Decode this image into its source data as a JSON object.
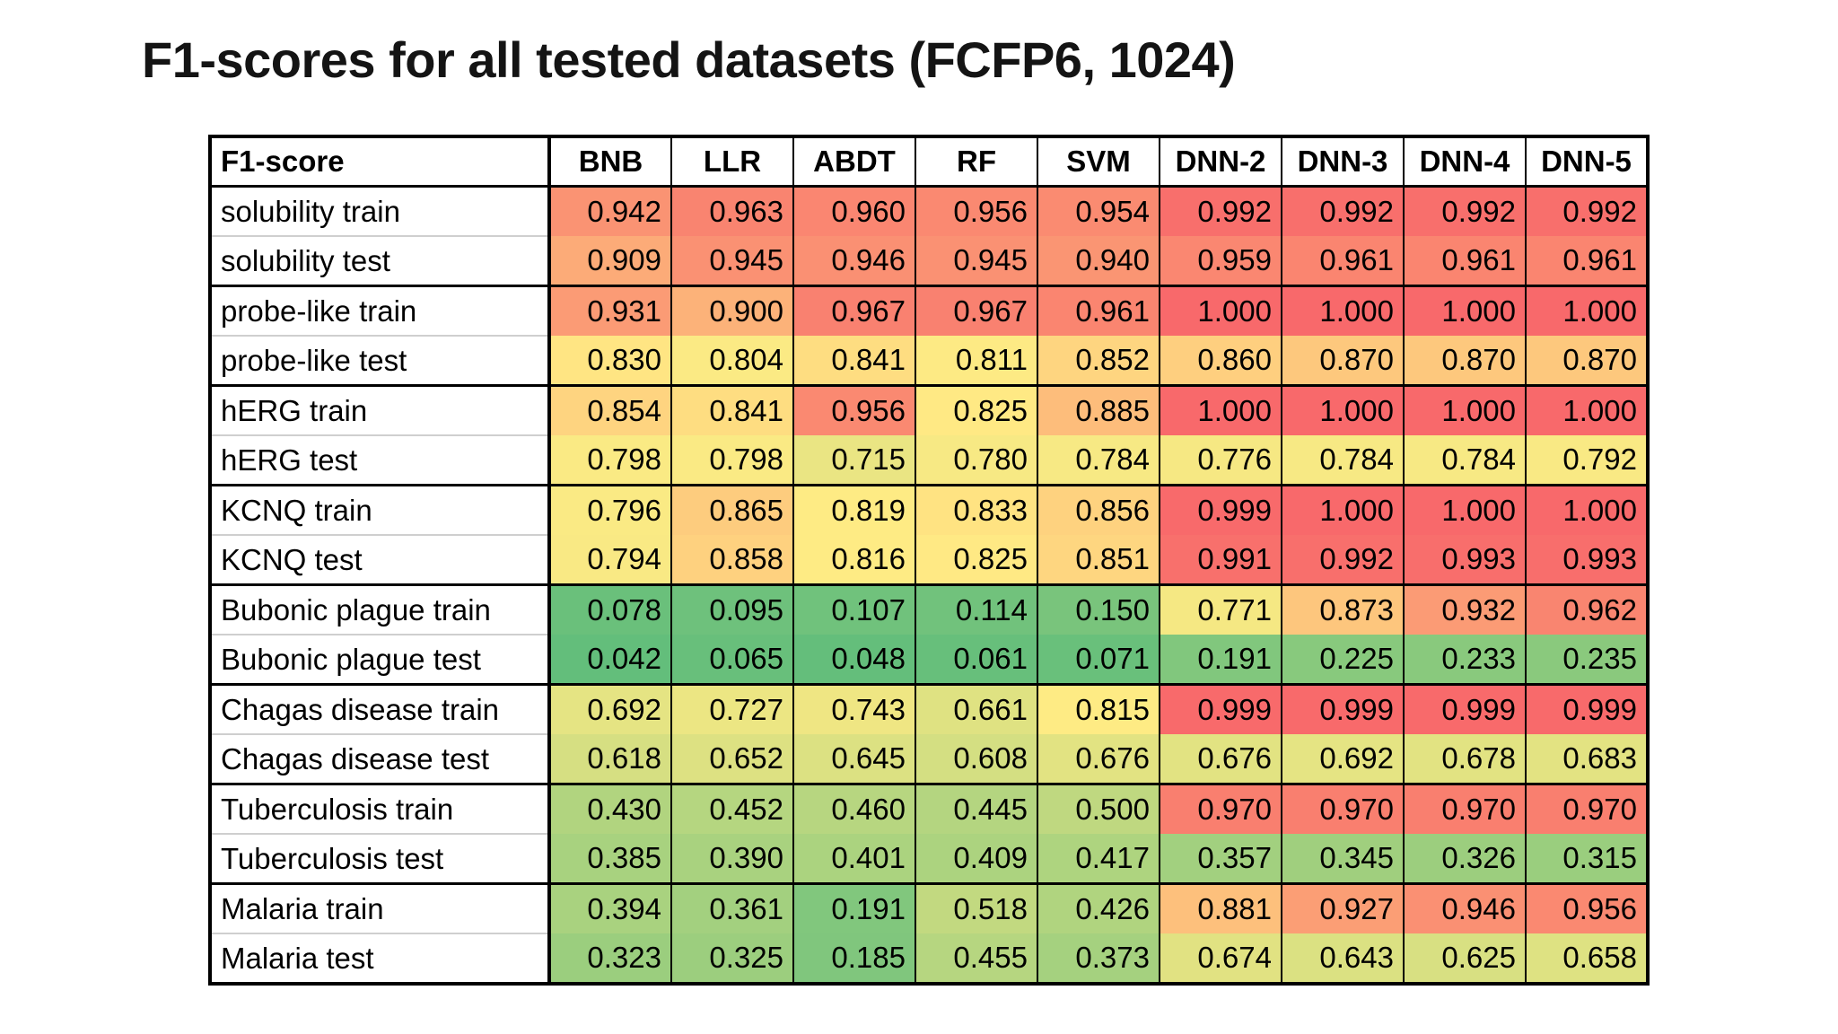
{
  "title": "F1-scores for all tested datasets (FCFP6, 1024)",
  "chart_data": {
    "type": "table",
    "subtype": "heatmap",
    "corner_label": "F1-score",
    "columns": [
      "BNB",
      "LLR",
      "ABDT",
      "RF",
      "SVM",
      "DNN-2",
      "DNN-3",
      "DNN-4",
      "DNN-5"
    ],
    "rows": [
      {
        "label": "solubility train",
        "values": [
          "0.942",
          "0.963",
          "0.960",
          "0.956",
          "0.954",
          "0.992",
          "0.992",
          "0.992",
          "0.992"
        ]
      },
      {
        "label": "solubility test",
        "values": [
          "0.909",
          "0.945",
          "0.946",
          "0.945",
          "0.940",
          "0.959",
          "0.961",
          "0.961",
          "0.961"
        ]
      },
      {
        "label": "probe-like train",
        "values": [
          "0.931",
          "0.900",
          "0.967",
          "0.967",
          "0.961",
          "1.000",
          "1.000",
          "1.000",
          "1.000"
        ]
      },
      {
        "label": "probe-like test",
        "values": [
          "0.830",
          "0.804",
          "0.841",
          "0.811",
          "0.852",
          "0.860",
          "0.870",
          "0.870",
          "0.870"
        ]
      },
      {
        "label": "hERG train",
        "values": [
          "0.854",
          "0.841",
          "0.956",
          "0.825",
          "0.885",
          "1.000",
          "1.000",
          "1.000",
          "1.000"
        ]
      },
      {
        "label": "hERG test",
        "values": [
          "0.798",
          "0.798",
          "0.715",
          "0.780",
          "0.784",
          "0.776",
          "0.784",
          "0.784",
          "0.792"
        ]
      },
      {
        "label": "KCNQ train",
        "values": [
          "0.796",
          "0.865",
          "0.819",
          "0.833",
          "0.856",
          "0.999",
          "1.000",
          "1.000",
          "1.000"
        ]
      },
      {
        "label": "KCNQ test",
        "values": [
          "0.794",
          "0.858",
          "0.816",
          "0.825",
          "0.851",
          "0.991",
          "0.992",
          "0.993",
          "0.993"
        ]
      },
      {
        "label": "Bubonic plague train",
        "values": [
          "0.078",
          "0.095",
          "0.107",
          "0.114",
          "0.150",
          "0.771",
          "0.873",
          "0.932",
          "0.962"
        ]
      },
      {
        "label": "Bubonic plague test",
        "values": [
          "0.042",
          "0.065",
          "0.048",
          "0.061",
          "0.071",
          "0.191",
          "0.225",
          "0.233",
          "0.235"
        ]
      },
      {
        "label": "Chagas disease train",
        "values": [
          "0.692",
          "0.727",
          "0.743",
          "0.661",
          "0.815",
          "0.999",
          "0.999",
          "0.999",
          "0.999"
        ]
      },
      {
        "label": "Chagas disease test",
        "values": [
          "0.618",
          "0.652",
          "0.645",
          "0.608",
          "0.676",
          "0.676",
          "0.692",
          "0.678",
          "0.683"
        ]
      },
      {
        "label": "Tuberculosis train",
        "values": [
          "0.430",
          "0.452",
          "0.460",
          "0.445",
          "0.500",
          "0.970",
          "0.970",
          "0.970",
          "0.970"
        ]
      },
      {
        "label": "Tuberculosis test",
        "values": [
          "0.385",
          "0.390",
          "0.401",
          "0.409",
          "0.417",
          "0.357",
          "0.345",
          "0.326",
          "0.315"
        ]
      },
      {
        "label": "Malaria train",
        "values": [
          "0.394",
          "0.361",
          "0.191",
          "0.518",
          "0.426",
          "0.881",
          "0.927",
          "0.946",
          "0.956"
        ]
      },
      {
        "label": "Malaria test",
        "values": [
          "0.323",
          "0.325",
          "0.185",
          "0.455",
          "0.373",
          "0.674",
          "0.643",
          "0.625",
          "0.658"
        ]
      }
    ],
    "color_scale": {
      "type": "3-color",
      "min_color": "#63BE7B",
      "mid_color": "#FFEB84",
      "max_color": "#F8696B",
      "midpoint": "median"
    }
  }
}
